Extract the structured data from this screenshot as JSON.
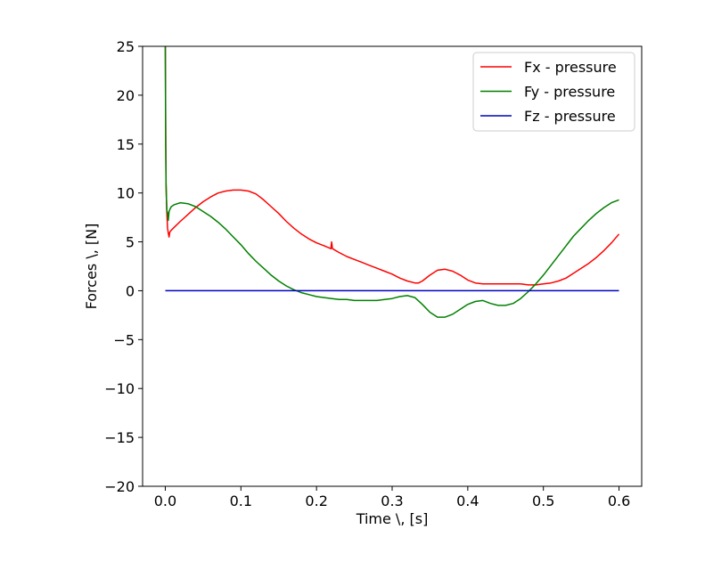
{
  "chart_data": {
    "type": "line",
    "xlabel": "Time \\, [s]",
    "ylabel": "Forces \\, [N]",
    "xlim": [
      -0.03,
      0.63
    ],
    "ylim": [
      -20,
      25
    ],
    "x_ticks": [
      0.0,
      0.1,
      0.2,
      0.3,
      0.4,
      0.5,
      0.6
    ],
    "x_tick_labels": [
      "0.0",
      "0.1",
      "0.2",
      "0.3",
      "0.4",
      "0.5",
      "0.6"
    ],
    "y_ticks": [
      -20,
      -15,
      -10,
      -5,
      0,
      5,
      10,
      15,
      20,
      25
    ],
    "y_tick_labels": [
      "−20",
      "−15",
      "−10",
      "−5",
      "0",
      "5",
      "10",
      "15",
      "20",
      "25"
    ],
    "grid": false,
    "legend_position": "top-right",
    "series": [
      {
        "name": "Fx - pressure",
        "color": "#ff0000",
        "x": [
          0.0,
          0.0005,
          0.001,
          0.002,
          0.003,
          0.004,
          0.005,
          0.006,
          0.008,
          0.012,
          0.02,
          0.03,
          0.04,
          0.05,
          0.06,
          0.07,
          0.08,
          0.09,
          0.1,
          0.11,
          0.12,
          0.13,
          0.14,
          0.15,
          0.16,
          0.17,
          0.18,
          0.19,
          0.2,
          0.21,
          0.219,
          0.22,
          0.221,
          0.23,
          0.24,
          0.25,
          0.26,
          0.27,
          0.28,
          0.29,
          0.3,
          0.31,
          0.32,
          0.33,
          0.335,
          0.34,
          0.35,
          0.36,
          0.37,
          0.38,
          0.39,
          0.4,
          0.41,
          0.42,
          0.43,
          0.44,
          0.45,
          0.46,
          0.47,
          0.48,
          0.49,
          0.5,
          0.51,
          0.52,
          0.53,
          0.54,
          0.55,
          0.56,
          0.57,
          0.58,
          0.59,
          0.6
        ],
        "y": [
          25,
          17,
          11,
          8.0,
          6.4,
          5.9,
          5.5,
          6.0,
          6.2,
          6.5,
          7.1,
          7.8,
          8.5,
          9.1,
          9.6,
          10.0,
          10.2,
          10.3,
          10.3,
          10.2,
          9.9,
          9.3,
          8.6,
          7.9,
          7.1,
          6.4,
          5.8,
          5.3,
          4.9,
          4.6,
          4.3,
          5.0,
          4.3,
          3.9,
          3.5,
          3.2,
          2.9,
          2.6,
          2.3,
          2.0,
          1.7,
          1.3,
          1.0,
          0.8,
          0.8,
          1.0,
          1.6,
          2.1,
          2.2,
          2.0,
          1.6,
          1.1,
          0.8,
          0.7,
          0.7,
          0.7,
          0.7,
          0.7,
          0.7,
          0.6,
          0.6,
          0.7,
          0.8,
          1.0,
          1.3,
          1.8,
          2.3,
          2.8,
          3.4,
          4.1,
          4.9,
          5.8
        ]
      },
      {
        "name": "Fy - pressure",
        "color": "#008000",
        "x": [
          0.0,
          0.0005,
          0.001,
          0.0015,
          0.002,
          0.003,
          0.004,
          0.005,
          0.006,
          0.008,
          0.012,
          0.02,
          0.03,
          0.04,
          0.05,
          0.06,
          0.07,
          0.08,
          0.09,
          0.1,
          0.11,
          0.12,
          0.13,
          0.14,
          0.15,
          0.16,
          0.17,
          0.18,
          0.19,
          0.2,
          0.21,
          0.22,
          0.23,
          0.24,
          0.25,
          0.26,
          0.27,
          0.28,
          0.29,
          0.3,
          0.31,
          0.32,
          0.33,
          0.34,
          0.35,
          0.36,
          0.37,
          0.38,
          0.39,
          0.4,
          0.41,
          0.42,
          0.43,
          0.44,
          0.45,
          0.46,
          0.47,
          0.48,
          0.49,
          0.5,
          0.51,
          0.52,
          0.53,
          0.54,
          0.55,
          0.56,
          0.57,
          0.58,
          0.59,
          0.6
        ],
        "y": [
          25,
          15,
          11.0,
          9.5,
          8.2,
          8.0,
          7.2,
          8.1,
          8.3,
          8.6,
          8.8,
          9.0,
          8.9,
          8.6,
          8.1,
          7.6,
          7.0,
          6.3,
          5.5,
          4.7,
          3.8,
          3.0,
          2.3,
          1.6,
          1.0,
          0.5,
          0.1,
          -0.2,
          -0.4,
          -0.6,
          -0.7,
          -0.8,
          -0.9,
          -0.9,
          -1.0,
          -1.0,
          -1.0,
          -1.0,
          -0.9,
          -0.8,
          -0.6,
          -0.5,
          -0.7,
          -1.4,
          -2.2,
          -2.7,
          -2.7,
          -2.4,
          -1.9,
          -1.4,
          -1.1,
          -1.0,
          -1.3,
          -1.5,
          -1.5,
          -1.3,
          -0.8,
          -0.1,
          0.7,
          1.6,
          2.6,
          3.6,
          4.6,
          5.6,
          6.4,
          7.2,
          7.9,
          8.5,
          9.0,
          9.3
        ]
      },
      {
        "name": "Fz - pressure",
        "color": "#0000bf",
        "x": [
          0.0,
          0.6
        ],
        "y": [
          0.0,
          0.0
        ]
      }
    ]
  }
}
